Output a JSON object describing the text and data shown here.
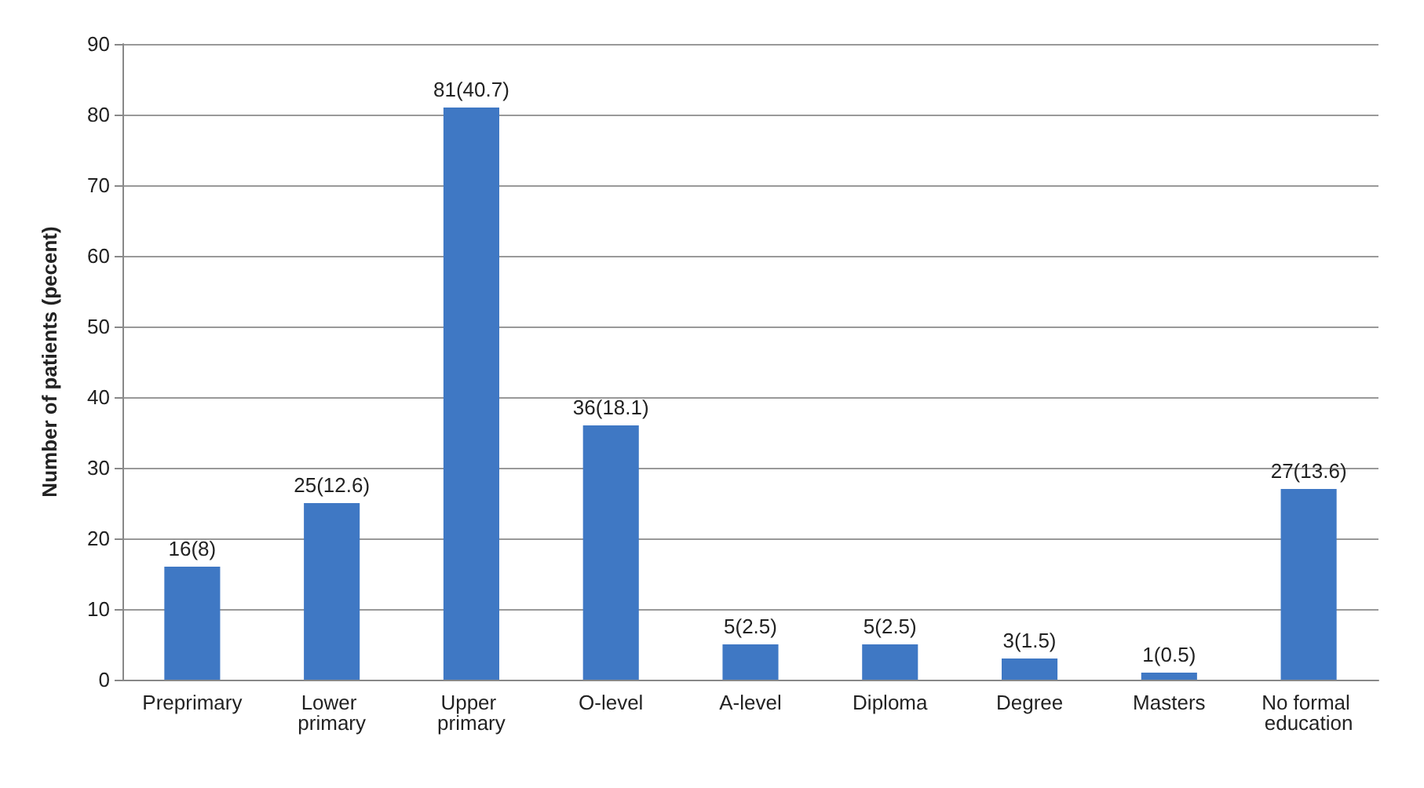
{
  "chart_data": {
    "type": "bar",
    "ylabel": "Number of patients (pecent)",
    "categories": [
      "Preprimary",
      "Lower primary",
      "Upper primary",
      "O-level",
      "A-level",
      "Diploma",
      "Degree",
      "Masters",
      "No formal education"
    ],
    "values": [
      16,
      25,
      81,
      36,
      5,
      5,
      3,
      1,
      27
    ],
    "value_labels": [
      "16(8)",
      "25(12.6)",
      "81(40.7)",
      "36(18.1)",
      "5(2.5)",
      "5(2.5)",
      "3(1.5)",
      "1(0.5)",
      "27(13.6)"
    ],
    "color": "#3f78c4",
    "ylim": [
      0,
      90
    ],
    "yticks": [
      0,
      10,
      20,
      30,
      40,
      50,
      60,
      70,
      80,
      90
    ],
    "grid": "y"
  }
}
